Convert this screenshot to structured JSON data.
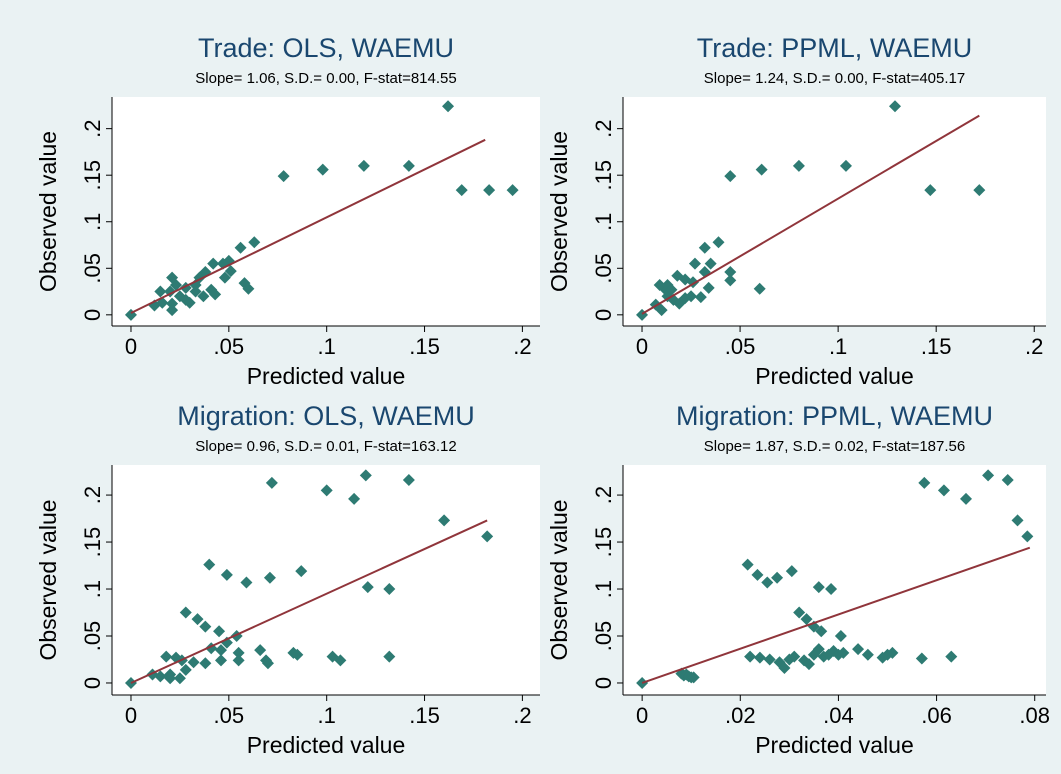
{
  "chart_data": [
    {
      "type": "scatter",
      "title": "Trade: OLS, WAEMU",
      "subtitle": "Slope= 1.06, S.D.= 0.00,  F-stat=814.55",
      "x_label": "Predicted value",
      "y_label": "Observed value",
      "color": "#2e7b73",
      "xlim": [
        -0.0097,
        0.209
      ],
      "ylim": [
        -0.012,
        0.234
      ],
      "xticks": [
        0,
        {
          "value": 0.05,
          "label": ".05"
        },
        {
          "value": 0.1,
          "label": ".1"
        },
        {
          "value": 0.15,
          "label": ".15"
        },
        {
          "value": 0.2,
          "label": ".2"
        }
      ],
      "yticks": [
        0,
        {
          "value": 0.05,
          "label": ".05"
        },
        {
          "value": 0.1,
          "label": ".1"
        },
        {
          "value": 0.15,
          "label": ".15"
        },
        {
          "value": 0.2,
          "label": ".2"
        }
      ],
      "x": [
        0,
        0.162,
        0.183,
        0.195,
        0.169,
        0.142,
        0.119,
        0.098,
        0.078,
        0.063,
        0.056,
        0.05,
        0.047,
        0.042,
        0.038,
        0.058,
        0.06,
        0.051,
        0.048,
        0.041,
        0.037,
        0.033,
        0.028,
        0.025,
        0.021,
        0.02,
        0.015,
        0.016,
        0.012,
        0.023,
        0.021,
        0.028,
        0.033,
        0.035,
        0.021,
        0.03,
        0.043
      ],
      "y": [
        0,
        0.224,
        0.134,
        0.134,
        0.134,
        0.16,
        0.16,
        0.156,
        0.149,
        0.078,
        0.072,
        0.058,
        0.055,
        0.055,
        0.046,
        0.034,
        0.028,
        0.047,
        0.04,
        0.027,
        0.02,
        0.025,
        0.016,
        0.02,
        0.012,
        0.025,
        0.025,
        0.013,
        0.01,
        0.032,
        0.04,
        0.029,
        0.032,
        0.04,
        0.005,
        0.013,
        0.022
      ],
      "fit": {
        "color": "#90353b",
        "x": [
          0,
          0.181
        ],
        "y": [
          0.002,
          0.188
        ]
      }
    },
    {
      "type": "scatter",
      "title": "Trade: PPML, WAEMU",
      "subtitle": "Slope= 1.24, S.D.= 0.00,  F-stat=405.17",
      "x_label": "Predicted value",
      "y_label": "Observed value",
      "color": "#2e7b73",
      "xlim": [
        -0.0097,
        0.206
      ],
      "ylim": [
        -0.012,
        0.234
      ],
      "xticks": [
        0,
        {
          "value": 0.05,
          "label": ".05"
        },
        {
          "value": 0.1,
          "label": ".1"
        },
        {
          "value": 0.15,
          "label": ".15"
        },
        {
          "value": 0.2,
          "label": ".2"
        }
      ],
      "yticks": [
        0,
        {
          "value": 0.05,
          "label": ".05"
        },
        {
          "value": 0.1,
          "label": ".1"
        },
        {
          "value": 0.15,
          "label": ".15"
        },
        {
          "value": 0.2,
          "label": ".2"
        }
      ],
      "x": [
        0.129,
        0.147,
        0.172,
        0.104,
        0.08,
        0.061,
        0.045,
        0.06,
        0.045,
        0.045,
        0.039,
        0.032,
        0.035,
        0.032,
        0.034,
        0.025,
        0.027,
        0.022,
        0.026,
        0.018,
        0.016,
        0.013,
        0.012,
        0.009,
        0.013,
        0.015,
        0.007,
        0.01,
        0.019,
        0.022,
        0.03,
        0
      ],
      "y": [
        0.224,
        0.134,
        0.134,
        0.16,
        0.16,
        0.156,
        0.149,
        0.028,
        0.046,
        0.037,
        0.078,
        0.072,
        0.055,
        0.046,
        0.029,
        0.02,
        0.055,
        0.038,
        0.035,
        0.042,
        0.016,
        0.02,
        0.027,
        0.032,
        0.032,
        0.027,
        0.011,
        0.005,
        0.012,
        0.018,
        0.019,
        0
      ],
      "fit": {
        "color": "#90353b",
        "x": [
          0,
          0.172
        ],
        "y": [
          0.001,
          0.214
        ]
      }
    },
    {
      "type": "scatter",
      "title": "Migration: OLS, WAEMU",
      "subtitle": "Slope= 0.96, S.D.= 0.01,  F-stat=163.12",
      "x_label": "Predicted value",
      "y_label": "Observed value",
      "color": "#2e7b73",
      "xlim": [
        -0.0097,
        0.209
      ],
      "ylim": [
        -0.0128,
        0.232
      ],
      "xticks": [
        0,
        {
          "value": 0.05,
          "label": ".05"
        },
        {
          "value": 0.1,
          "label": ".1"
        },
        {
          "value": 0.15,
          "label": ".15"
        },
        {
          "value": 0.2,
          "label": ".2"
        }
      ],
      "yticks": [
        0,
        {
          "value": 0.05,
          "label": ".05"
        },
        {
          "value": 0.1,
          "label": ".1"
        },
        {
          "value": 0.15,
          "label": ".15"
        },
        {
          "value": 0.2,
          "label": ".2"
        }
      ],
      "x": [
        0,
        0.072,
        0.1,
        0.114,
        0.12,
        0.142,
        0.16,
        0.182,
        0.04,
        0.049,
        0.059,
        0.071,
        0.087,
        0.121,
        0.132,
        0.028,
        0.034,
        0.038,
        0.045,
        0.054,
        0.083,
        0.085,
        0.103,
        0.107,
        0.132,
        0.066,
        0.069,
        0.07,
        0.055,
        0.055,
        0.046,
        0.046,
        0.041,
        0.038,
        0.032,
        0.026,
        0.018,
        0.023,
        0.028,
        0.02,
        0.025,
        0.02,
        0.015,
        0.011,
        0.049
      ],
      "y": [
        0,
        0.213,
        0.205,
        0.196,
        0.221,
        0.216,
        0.173,
        0.156,
        0.126,
        0.115,
        0.107,
        0.112,
        0.119,
        0.102,
        0.1,
        0.075,
        0.068,
        0.06,
        0.055,
        0.05,
        0.032,
        0.03,
        0.028,
        0.024,
        0.028,
        0.035,
        0.024,
        0.021,
        0.032,
        0.024,
        0.035,
        0.024,
        0.037,
        0.021,
        0.022,
        0.024,
        0.028,
        0.027,
        0.014,
        0.009,
        0.005,
        0.005,
        0.007,
        0.009,
        0.043
      ],
      "fit": {
        "color": "#90353b",
        "x": [
          0,
          0.182
        ],
        "y": [
          0,
          0.173
        ]
      }
    },
    {
      "type": "scatter",
      "title": "Migration: PPML, WAEMU",
      "subtitle": "Slope= 1.87, S.D.= 0.02,  F-stat=187.56",
      "x_label": "Predicted value",
      "y_label": "Observed value",
      "color": "#2e7b73",
      "xlim": [
        -0.0039,
        0.0823
      ],
      "ylim": [
        -0.0128,
        0.232
      ],
      "xticks": [
        0,
        {
          "value": 0.02,
          "label": ".02"
        },
        {
          "value": 0.04,
          "label": ".04"
        },
        {
          "value": 0.06,
          "label": ".06"
        },
        {
          "value": 0.08,
          "label": ".08"
        }
      ],
      "yticks": [
        0,
        {
          "value": 0.05,
          "label": ".05"
        },
        {
          "value": 0.1,
          "label": ".1"
        },
        {
          "value": 0.15,
          "label": ".15"
        },
        {
          "value": 0.2,
          "label": ".2"
        }
      ],
      "x": [
        0,
        0.0575,
        0.0615,
        0.066,
        0.0705,
        0.0745,
        0.0765,
        0.0785,
        0.0215,
        0.0235,
        0.0255,
        0.0275,
        0.0305,
        0.036,
        0.0385,
        0.032,
        0.0335,
        0.035,
        0.0365,
        0.0405,
        0.022,
        0.024,
        0.026,
        0.028,
        0.029,
        0.03,
        0.031,
        0.033,
        0.034,
        0.035,
        0.036,
        0.037,
        0.038,
        0.039,
        0.04,
        0.041,
        0.044,
        0.046,
        0.049,
        0.05,
        0.051,
        0.057,
        0.063,
        0.008,
        0.0085,
        0.009,
        0.0095,
        0.01,
        0.0105
      ],
      "y": [
        0,
        0.213,
        0.205,
        0.196,
        0.221,
        0.216,
        0.173,
        0.156,
        0.126,
        0.115,
        0.107,
        0.112,
        0.119,
        0.102,
        0.1,
        0.075,
        0.068,
        0.06,
        0.055,
        0.05,
        0.028,
        0.027,
        0.025,
        0.022,
        0.016,
        0.025,
        0.028,
        0.024,
        0.02,
        0.03,
        0.036,
        0.028,
        0.03,
        0.034,
        0.03,
        0.032,
        0.036,
        0.03,
        0.027,
        0.03,
        0.032,
        0.026,
        0.028,
        0.01,
        0.008,
        0.009,
        0.007,
        0.006,
        0.006
      ],
      "fit": {
        "color": "#90353b",
        "x": [
          0,
          0.079
        ],
        "y": [
          0,
          0.144
        ]
      }
    }
  ]
}
